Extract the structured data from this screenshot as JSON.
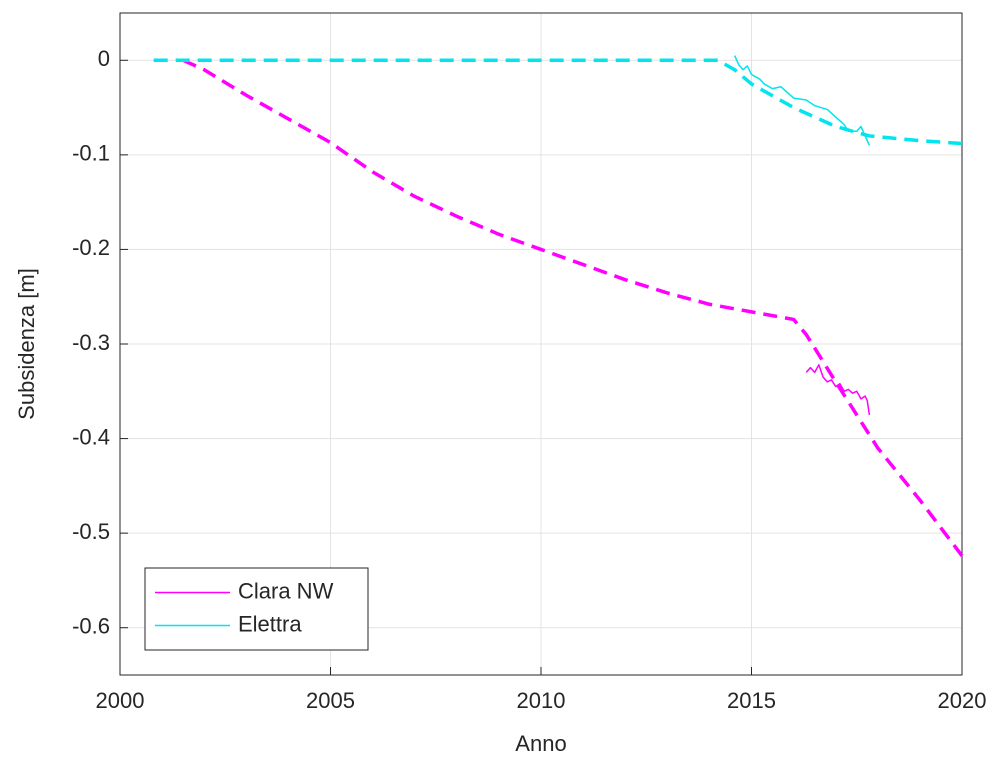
{
  "chart_data": {
    "type": "line",
    "xlabel": "Anno",
    "ylabel": "Subsidenza [m]",
    "xlim": [
      2000,
      2020
    ],
    "xticks": [
      2000,
      2005,
      2010,
      2015,
      2020
    ],
    "ylim": [
      -0.65,
      0.05
    ],
    "yticks": [
      0,
      -0.1,
      -0.2,
      -0.3,
      -0.4,
      -0.5,
      -0.6
    ],
    "grid": true,
    "legend": "lower left",
    "series": [
      {
        "name": "Clara NW",
        "color": "#ff00ff",
        "style": "solid",
        "x": [
          2016.3,
          2016.4,
          2016.5,
          2016.6,
          2016.7,
          2016.8,
          2016.9,
          2017.0,
          2017.1,
          2017.2,
          2017.3,
          2017.4,
          2017.5,
          2017.6,
          2017.7,
          2017.75,
          2017.8
        ],
        "values": [
          -0.33,
          -0.325,
          -0.33,
          -0.322,
          -0.335,
          -0.34,
          -0.338,
          -0.345,
          -0.342,
          -0.35,
          -0.348,
          -0.352,
          -0.35,
          -0.358,
          -0.355,
          -0.36,
          -0.375
        ]
      },
      {
        "color": "#ff00ff",
        "style": "dashed",
        "x": [
          2001.5,
          2002,
          2003,
          2004,
          2005,
          2006,
          2007,
          2008,
          2009,
          2010,
          2011,
          2012,
          2013,
          2014,
          2015,
          2016,
          2016.3,
          2017,
          2018,
          2019,
          2020
        ],
        "values": [
          0,
          -0.01,
          -0.037,
          -0.062,
          -0.087,
          -0.118,
          -0.144,
          -0.165,
          -0.184,
          -0.2,
          -0.216,
          -0.232,
          -0.246,
          -0.258,
          -0.266,
          -0.274,
          -0.29,
          -0.34,
          -0.41,
          -0.465,
          -0.524
        ]
      },
      {
        "name": "Elettra",
        "color": "#00e5ee",
        "style": "solid",
        "x": [
          2014.6,
          2014.7,
          2014.8,
          2014.9,
          2015.0,
          2015.2,
          2015.3,
          2015.5,
          2015.7,
          2016.0,
          2016.3,
          2016.5,
          2016.8,
          2017.0,
          2017.2,
          2017.3,
          2017.5,
          2017.6,
          2017.7,
          2017.8
        ],
        "values": [
          0.005,
          -0.005,
          -0.01,
          -0.006,
          -0.015,
          -0.02,
          -0.025,
          -0.03,
          -0.028,
          -0.04,
          -0.042,
          -0.048,
          -0.052,
          -0.06,
          -0.068,
          -0.075,
          -0.075,
          -0.07,
          -0.08,
          -0.09
        ]
      },
      {
        "color": "#00e5ee",
        "style": "dashed",
        "x": [
          2000.8,
          2014.2,
          2014.6,
          2015,
          2016,
          2017,
          2017.8,
          2019,
          2020
        ],
        "values": [
          0,
          0,
          -0.01,
          -0.025,
          -0.05,
          -0.07,
          -0.08,
          -0.085,
          -0.088
        ]
      }
    ]
  }
}
